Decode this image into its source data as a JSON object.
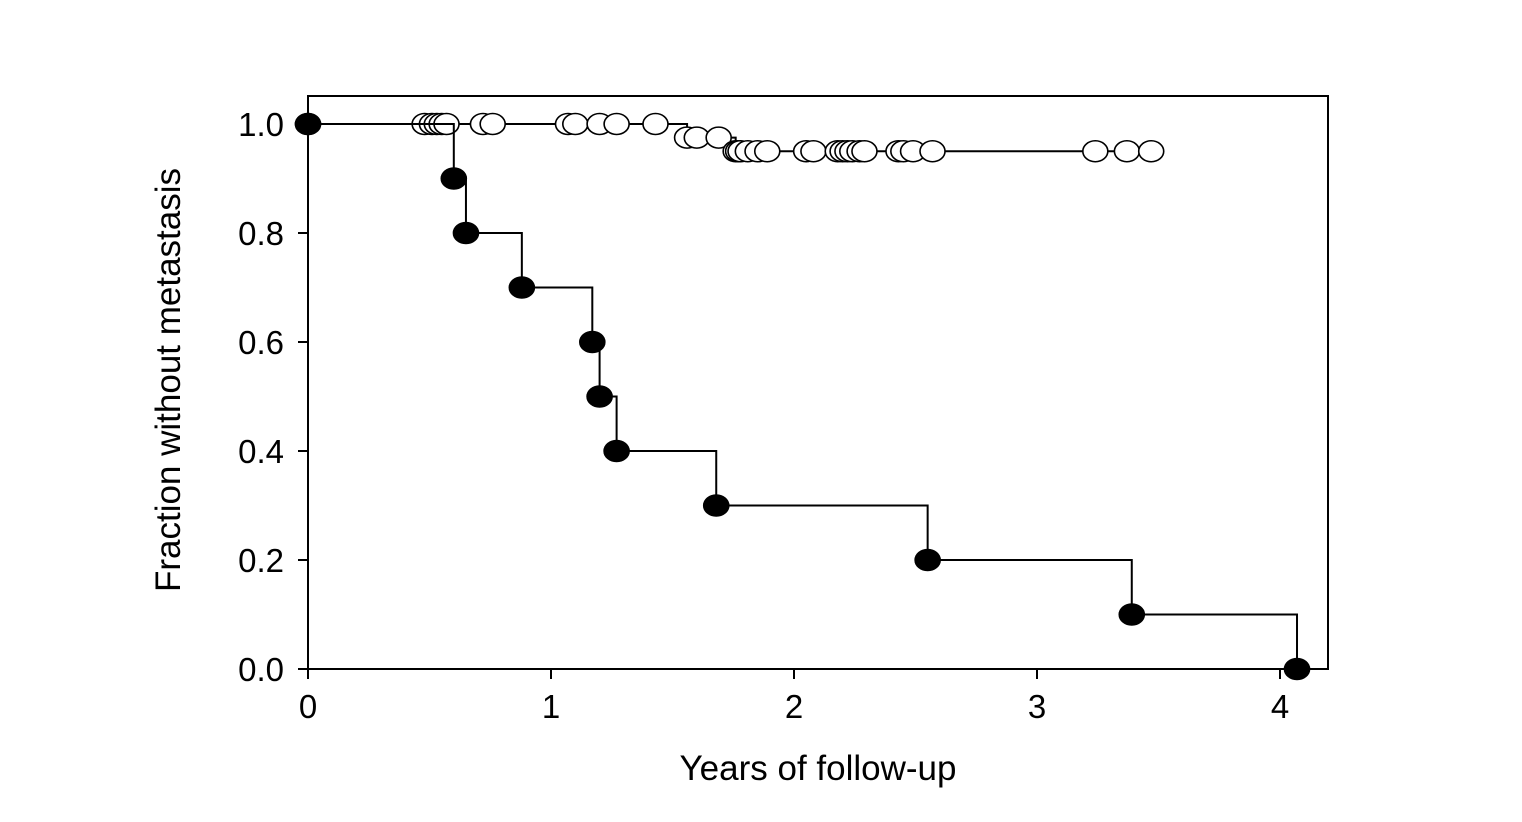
{
  "chart_data": {
    "type": "line",
    "title": "",
    "xlabel": "Years of follow-up",
    "ylabel": "Fraction without metastasis",
    "xlim": [
      0,
      4.2
    ],
    "ylim": [
      0,
      1.05
    ],
    "x_ticks": [
      "0",
      "1",
      "2",
      "3",
      "4"
    ],
    "y_ticks": [
      "0.0",
      "0.2",
      "0.4",
      "0.6",
      "0.8",
      "1.0"
    ],
    "grid": false,
    "legend": "none",
    "series": [
      {
        "marker": "open-circle",
        "color": "#000000",
        "curve": "step",
        "x": [
          0,
          0.48,
          0.51,
          0.53,
          0.55,
          0.57,
          0.72,
          0.76,
          1.07,
          1.1,
          1.2,
          1.27,
          1.43,
          1.56,
          1.6,
          1.69,
          1.76,
          1.77,
          1.78,
          1.81,
          1.85,
          1.89,
          2.05,
          2.08,
          2.18,
          2.2,
          2.22,
          2.24,
          2.27,
          2.29,
          2.43,
          2.45,
          2.49,
          2.57,
          3.24,
          3.37,
          3.47
        ],
        "y": [
          1.0,
          1.0,
          1.0,
          1.0,
          1.0,
          1.0,
          1.0,
          1.0,
          1.0,
          1.0,
          1.0,
          1.0,
          1.0,
          0.975,
          0.975,
          0.975,
          0.95,
          0.95,
          0.95,
          0.95,
          0.95,
          0.95,
          0.95,
          0.95,
          0.95,
          0.95,
          0.95,
          0.95,
          0.95,
          0.95,
          0.95,
          0.95,
          0.95,
          0.95,
          0.95,
          0.95,
          0.95
        ]
      },
      {
        "marker": "filled-circle",
        "color": "#000000",
        "curve": "step",
        "x": [
          0,
          0.6,
          0.65,
          0.88,
          1.17,
          1.2,
          1.27,
          1.68,
          2.55,
          3.39,
          4.07
        ],
        "y": [
          1.0,
          0.9,
          0.8,
          0.7,
          0.6,
          0.5,
          0.4,
          0.3,
          0.2,
          0.1,
          0.0
        ]
      }
    ]
  }
}
